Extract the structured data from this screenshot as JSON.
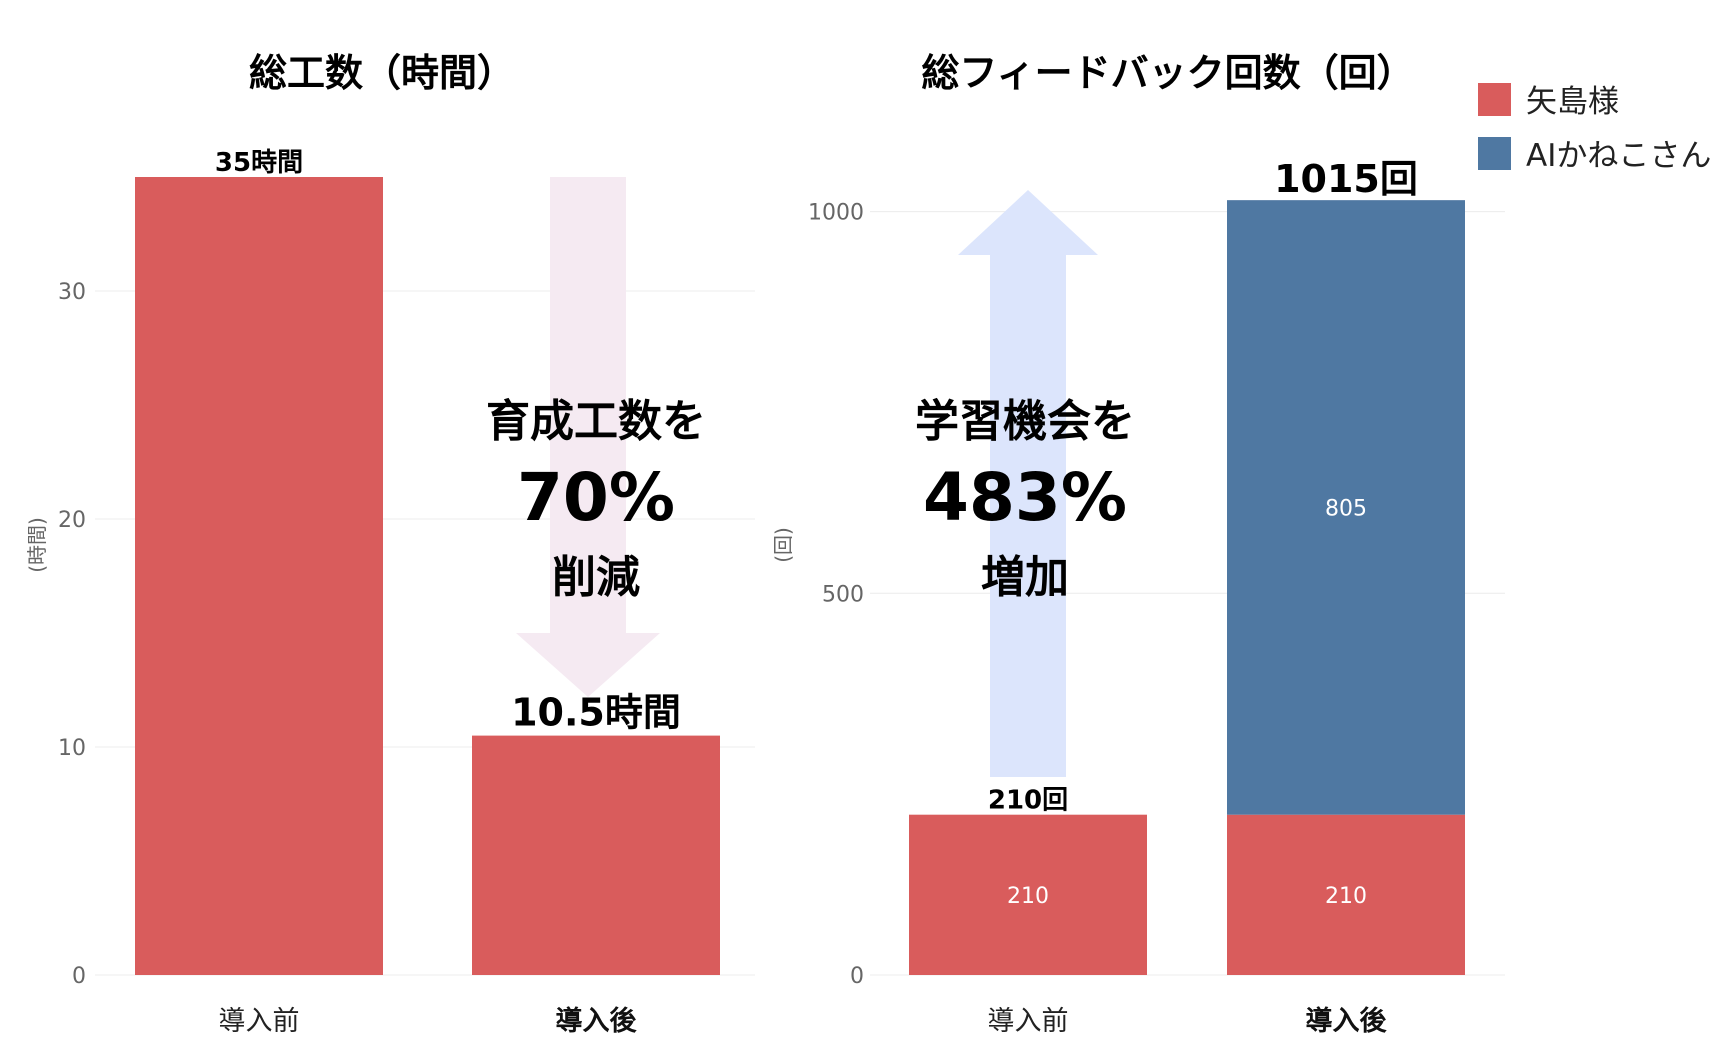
{
  "colors": {
    "yajima": "#d95c5c",
    "ai": "#4f78a2",
    "arrow_down": "#f5eaf2",
    "arrow_up": "#dce5fc"
  },
  "legend": {
    "items": [
      {
        "label": "矢島様",
        "color": "#d95c5c"
      },
      {
        "label": "AIかねこさん",
        "color": "#4f78a2"
      }
    ],
    "position": "top-right"
  },
  "chart_data": [
    {
      "type": "bar",
      "title": "総工数（時間）",
      "ylabel": "(時間)",
      "ylim": [
        0,
        37.5
      ],
      "yticks": [
        "0",
        "10",
        "20",
        "30"
      ],
      "ytick_values": [
        0,
        10,
        20,
        30
      ],
      "categories": [
        "導入前",
        "導入後"
      ],
      "values": [
        35,
        10.5
      ],
      "total_labels": [
        "35時間",
        "10.5時間"
      ],
      "annotation": {
        "line1": "育成工数を",
        "line2": "70%",
        "line3": "削減",
        "arrow": "down"
      }
    },
    {
      "type": "bar",
      "stacked": true,
      "title": "総フィードバック回数（回）",
      "ylabel": "(回)",
      "ylim": [
        0,
        1120
      ],
      "yticks": [
        "0",
        "500",
        "1000"
      ],
      "ytick_values": [
        0,
        500,
        1000
      ],
      "categories": [
        "導入前",
        "導入後"
      ],
      "series": [
        {
          "name": "矢島様",
          "values": [
            210,
            210
          ],
          "labels": [
            "210",
            "210"
          ]
        },
        {
          "name": "AIかねこさん",
          "values": [
            0,
            805
          ],
          "labels": [
            "",
            "805"
          ]
        }
      ],
      "total_labels": [
        "210回",
        "1015回"
      ],
      "annotation": {
        "line1": "学習機会を",
        "line2": "483%",
        "line3": "増加",
        "arrow": "up"
      }
    }
  ]
}
